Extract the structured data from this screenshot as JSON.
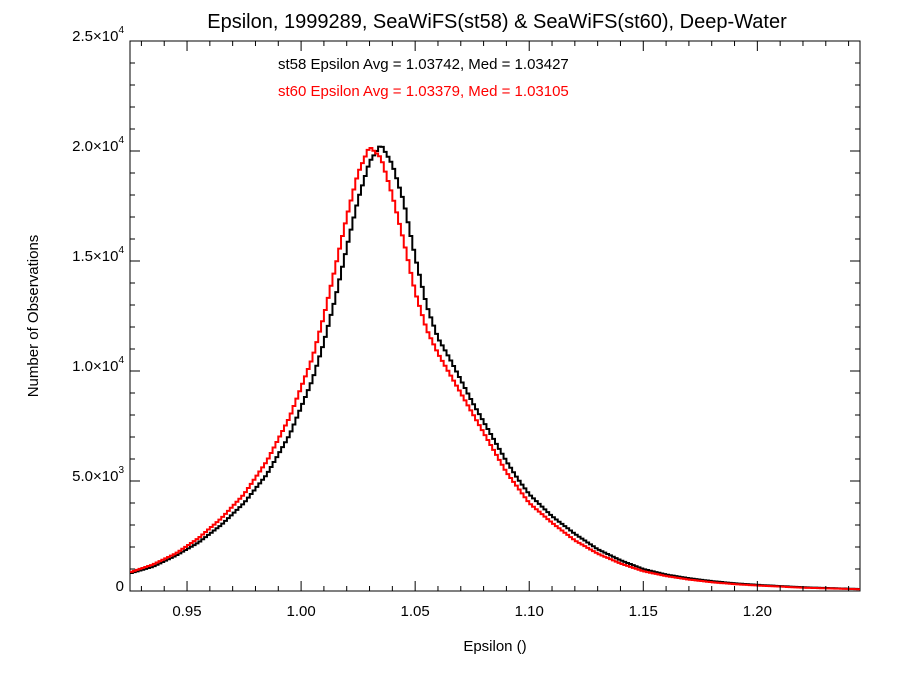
{
  "chart_data": {
    "type": "line",
    "title": "Epsilon, 1999289, SeaWiFS(st58) & SeaWiFS(st60), Deep-Water",
    "xlabel": "Epsilon ()",
    "ylabel": "Number of Observations",
    "xlim": [
      0.925,
      1.245
    ],
    "ylim": [
      0,
      25000
    ],
    "x_ticks": [
      {
        "value": 0.95,
        "label": "0.95"
      },
      {
        "value": 1.0,
        "label": "1.00"
      },
      {
        "value": 1.05,
        "label": "1.05"
      },
      {
        "value": 1.1,
        "label": "1.10"
      },
      {
        "value": 1.15,
        "label": "1.15"
      },
      {
        "value": 1.2,
        "label": "1.20"
      }
    ],
    "y_ticks": [
      {
        "value": 0,
        "mantissa": "0",
        "exponent": ""
      },
      {
        "value": 5000,
        "mantissa": "5.0×10",
        "exponent": "3"
      },
      {
        "value": 10000,
        "mantissa": "1.0×10",
        "exponent": "4"
      },
      {
        "value": 15000,
        "mantissa": "1.5×10",
        "exponent": "4"
      },
      {
        "value": 20000,
        "mantissa": "2.0×10",
        "exponent": "4"
      },
      {
        "value": 25000,
        "mantissa": "2.5×10",
        "exponent": "4"
      }
    ],
    "annotations": [
      {
        "text": "st58 Epsilon Avg = 1.03742, Med = 1.03427",
        "color": "#000000"
      },
      {
        "text": "st60 Epsilon Avg = 1.03379, Med = 1.03105",
        "color": "#ff0000"
      }
    ],
    "series": [
      {
        "color": "#000000",
        "points": [
          [
            0.925,
            800
          ],
          [
            0.935,
            1100
          ],
          [
            0.945,
            1600
          ],
          [
            0.955,
            2200
          ],
          [
            0.965,
            3000
          ],
          [
            0.975,
            4000
          ],
          [
            0.985,
            5300
          ],
          [
            0.995,
            7100
          ],
          [
            1.005,
            9600
          ],
          [
            1.01,
            11300
          ],
          [
            1.015,
            13300
          ],
          [
            1.02,
            15600
          ],
          [
            1.025,
            17800
          ],
          [
            1.03,
            19500
          ],
          [
            1.035,
            20300
          ],
          [
            1.04,
            19400
          ],
          [
            1.045,
            17700
          ],
          [
            1.05,
            15200
          ],
          [
            1.055,
            13000
          ],
          [
            1.06,
            11500
          ],
          [
            1.065,
            10600
          ],
          [
            1.07,
            9600
          ],
          [
            1.075,
            8600
          ],
          [
            1.08,
            7700
          ],
          [
            1.085,
            6800
          ],
          [
            1.09,
            5900
          ],
          [
            1.095,
            5100
          ],
          [
            1.1,
            4400
          ],
          [
            1.11,
            3400
          ],
          [
            1.12,
            2600
          ],
          [
            1.13,
            1900
          ],
          [
            1.14,
            1400
          ],
          [
            1.15,
            1000
          ],
          [
            1.16,
            750
          ],
          [
            1.17,
            580
          ],
          [
            1.18,
            450
          ],
          [
            1.19,
            350
          ],
          [
            1.2,
            280
          ],
          [
            1.22,
            170
          ],
          [
            1.245,
            90
          ]
        ]
      },
      {
        "color": "#ff0000",
        "points": [
          [
            0.925,
            850
          ],
          [
            0.935,
            1200
          ],
          [
            0.945,
            1700
          ],
          [
            0.955,
            2400
          ],
          [
            0.965,
            3300
          ],
          [
            0.975,
            4400
          ],
          [
            0.985,
            5900
          ],
          [
            0.995,
            7900
          ],
          [
            1.005,
            10600
          ],
          [
            1.01,
            12500
          ],
          [
            1.015,
            14700
          ],
          [
            1.02,
            17000
          ],
          [
            1.025,
            19000
          ],
          [
            1.03,
            20200
          ],
          [
            1.035,
            19700
          ],
          [
            1.04,
            18000
          ],
          [
            1.045,
            15900
          ],
          [
            1.05,
            13600
          ],
          [
            1.055,
            11900
          ],
          [
            1.06,
            10800
          ],
          [
            1.065,
            9900
          ],
          [
            1.07,
            9000
          ],
          [
            1.075,
            8100
          ],
          [
            1.08,
            7200
          ],
          [
            1.085,
            6300
          ],
          [
            1.09,
            5400
          ],
          [
            1.095,
            4700
          ],
          [
            1.1,
            4000
          ],
          [
            1.11,
            3100
          ],
          [
            1.12,
            2300
          ],
          [
            1.13,
            1700
          ],
          [
            1.14,
            1250
          ],
          [
            1.15,
            900
          ],
          [
            1.16,
            680
          ],
          [
            1.17,
            520
          ],
          [
            1.18,
            400
          ],
          [
            1.19,
            310
          ],
          [
            1.2,
            250
          ],
          [
            1.22,
            150
          ],
          [
            1.245,
            80
          ]
        ]
      }
    ]
  }
}
